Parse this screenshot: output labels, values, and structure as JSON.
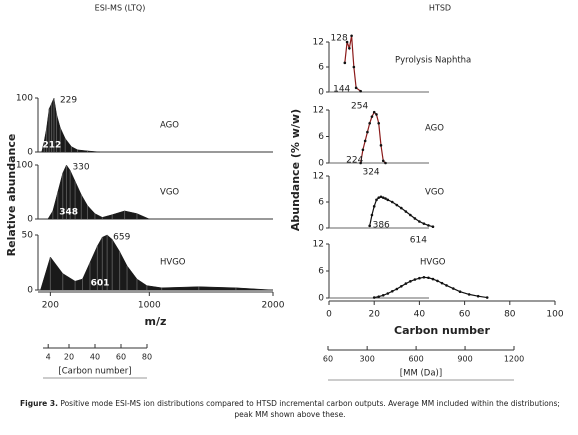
{
  "chart_data": [
    {
      "type": "area",
      "title": "ESI-MS (LTQ)",
      "ylabel": "Relative abundance",
      "xlabel": "m/z",
      "xlim": [
        100,
        2000
      ],
      "xticks": [
        200,
        1000,
        2000
      ],
      "x2label": "[Carbon number]",
      "x2lim": [
        0,
        80
      ],
      "x2ticks": [
        4,
        20,
        40,
        60,
        80
      ],
      "color": "#1a1a1a",
      "panels": [
        {
          "name": "AGO",
          "ylim": [
            0,
            100
          ],
          "yticks": [
            0,
            100
          ],
          "peak": 229,
          "average": 212,
          "x": [
            130,
            150,
            170,
            190,
            210,
            229,
            250,
            280,
            320,
            370,
            420,
            500,
            600
          ],
          "values": [
            0,
            20,
            45,
            80,
            90,
            100,
            70,
            45,
            25,
            10,
            4,
            2,
            0
          ]
        },
        {
          "name": "VGO",
          "ylim": [
            0,
            100
          ],
          "yticks": [
            0,
            100
          ],
          "peak": 330,
          "average": 348,
          "x": [
            180,
            220,
            260,
            300,
            330,
            360,
            400,
            450,
            500,
            560,
            620,
            700,
            800,
            900,
            1000
          ],
          "values": [
            0,
            15,
            50,
            85,
            100,
            90,
            70,
            45,
            25,
            10,
            3,
            8,
            15,
            10,
            0
          ]
        },
        {
          "name": "HVGO",
          "ylim": [
            0,
            50
          ],
          "yticks": [
            0,
            50
          ],
          "peak": 659,
          "average": 601,
          "x": [
            120,
            200,
            300,
            400,
            460,
            520,
            580,
            620,
            659,
            700,
            760,
            820,
            900,
            980,
            1100,
            1400,
            1700,
            2000
          ],
          "values": [
            0,
            30,
            15,
            8,
            10,
            25,
            40,
            48,
            50,
            46,
            35,
            22,
            10,
            4,
            2,
            3,
            2,
            0
          ]
        }
      ]
    },
    {
      "type": "line",
      "title": "HTSD",
      "ylabel": "Abundance (% w/w)",
      "xlabel": "Carbon number",
      "xlim": [
        0,
        100
      ],
      "xticks": [
        0,
        20,
        40,
        60,
        80,
        100
      ],
      "x2label": "[MM (Da)]",
      "x2lim": [
        60,
        1200
      ],
      "x2ticks": [
        60,
        300,
        600,
        900,
        1200
      ],
      "color": "#111111",
      "segment_color": "#8b1a1a",
      "panels": [
        {
          "name": "Pyrolysis Naphtha",
          "ylim": [
            0,
            12
          ],
          "yticks": [
            0,
            6,
            12
          ],
          "peak": 128,
          "average": 144,
          "x": [
            7,
            8,
            9,
            10,
            11,
            12,
            14
          ],
          "values": [
            7,
            12,
            10.5,
            13.5,
            6,
            1,
            0.2
          ]
        },
        {
          "name": "AGO",
          "ylim": [
            0,
            12
          ],
          "yticks": [
            0,
            6,
            12
          ],
          "peak": 254,
          "average": 224,
          "x": [
            14,
            15,
            16,
            17,
            18,
            19,
            20,
            21,
            22,
            23,
            24,
            25
          ],
          "values": [
            0,
            3,
            5,
            7,
            9,
            10.5,
            11.5,
            11,
            9,
            4,
            0.5,
            0
          ]
        },
        {
          "name": "VGO",
          "ylim": [
            0,
            12
          ],
          "yticks": [
            0,
            6,
            12
          ],
          "peak": 324,
          "average": 386,
          "x": [
            18,
            19,
            20,
            21,
            22,
            23,
            24,
            25,
            26,
            28,
            30,
            32,
            34,
            36,
            38,
            40,
            42,
            44,
            46
          ],
          "values": [
            0.5,
            3,
            5,
            6.5,
            7,
            7.2,
            7,
            6.8,
            6.5,
            6,
            5.3,
            4.6,
            3.8,
            3,
            2.2,
            1.5,
            1,
            0.6,
            0.3
          ]
        },
        {
          "name": "HVGO",
          "ylim": [
            0,
            12
          ],
          "yticks": [
            0,
            6,
            12
          ],
          "peak": 614,
          "x": [
            20,
            22,
            24,
            26,
            28,
            30,
            32,
            34,
            36,
            38,
            40,
            42,
            44,
            46,
            48,
            50,
            52,
            55,
            58,
            62,
            66,
            70
          ],
          "values": [
            0.1,
            0.3,
            0.6,
            1,
            1.5,
            2,
            2.6,
            3.2,
            3.7,
            4.1,
            4.4,
            4.6,
            4.5,
            4.2,
            3.8,
            3.3,
            2.8,
            2.1,
            1.4,
            0.8,
            0.4,
            0.1
          ]
        }
      ]
    }
  ],
  "caption": {
    "label": "Figure 3.",
    "text": "Positive mode ESI-MS ion distributions compared to HTSD incremental carbon outputs. Average MM included within the distributions; peak MM shown above these."
  }
}
